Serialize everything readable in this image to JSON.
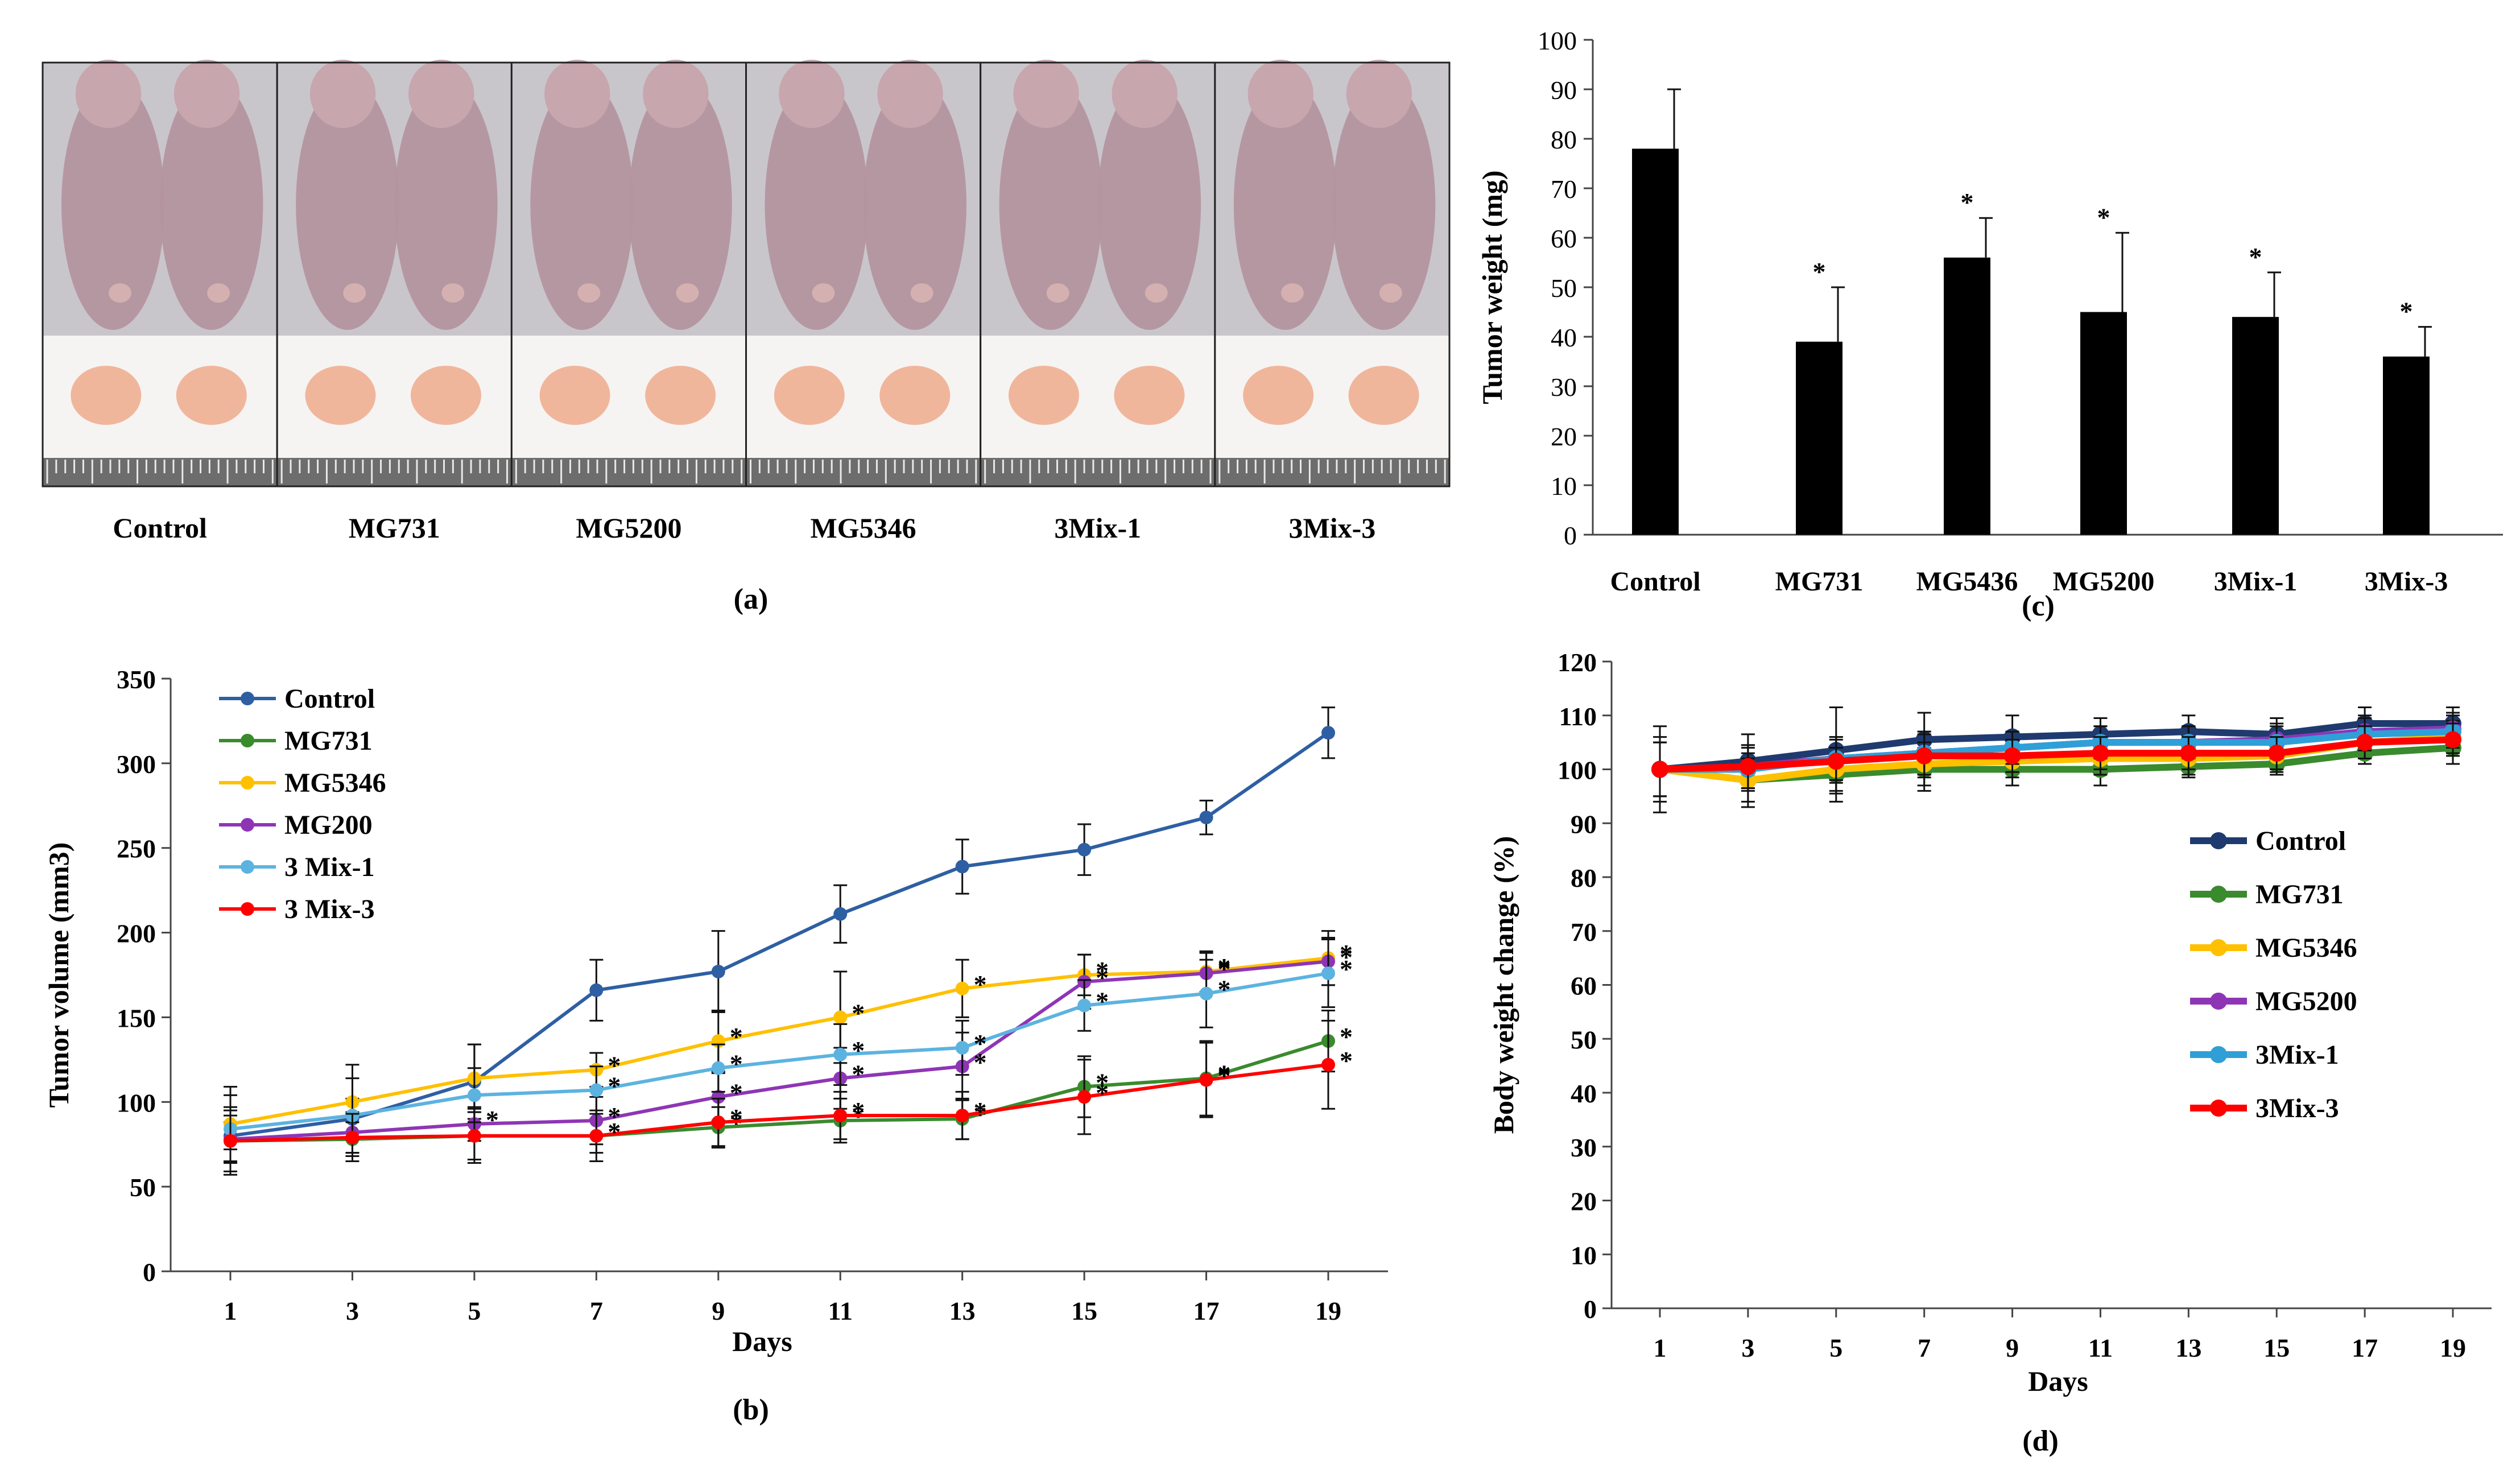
{
  "figure": {
    "panel_labels": {
      "a": "(a)",
      "b": "(b)",
      "c": "(c)",
      "d": "(d)"
    }
  },
  "photo_panel": {
    "groups": [
      "Control",
      "MG731",
      "MG5200",
      "MG5346",
      "3Mix-1",
      "3Mix-3"
    ],
    "colors": {
      "skin": "#b4959f",
      "foil": "#c9c6cb",
      "tumor": "#f0b69c",
      "ruler": "#6d6d6d",
      "border": "#222222"
    }
  },
  "chart_data": [
    {
      "id": "b",
      "type": "line",
      "title": "",
      "xlabel": "Days",
      "ylabel": "Tumor volume (mm3)",
      "x": [
        1,
        3,
        5,
        7,
        9,
        11,
        13,
        15,
        17,
        19
      ],
      "ylim": [
        0,
        350
      ],
      "yticks": [
        0,
        50,
        100,
        150,
        200,
        250,
        300,
        350
      ],
      "legend_position": "top-left",
      "series": [
        {
          "name": "Control",
          "color": "#2e5fa3",
          "values": [
            80,
            90,
            112,
            166,
            177,
            211,
            239,
            249,
            268,
            318
          ],
          "errors": [
            8,
            12,
            22,
            18,
            24,
            17,
            16,
            15,
            10,
            15
          ],
          "stars": [
            false,
            false,
            false,
            false,
            false,
            false,
            false,
            false,
            false,
            false
          ]
        },
        {
          "name": "MG731",
          "color": "#3a8a2e",
          "values": [
            77,
            78,
            80,
            80,
            85,
            89,
            90,
            109,
            114,
            136
          ],
          "errors": [
            20,
            10,
            14,
            10,
            12,
            13,
            12,
            18,
            22,
            18
          ],
          "stars": [
            false,
            false,
            false,
            true,
            true,
            true,
            true,
            true,
            true,
            true
          ]
        },
        {
          "name": "MG5346",
          "color": "#ffc000",
          "values": [
            87,
            100,
            114,
            119,
            136,
            150,
            167,
            175,
            177,
            185
          ],
          "errors": [
            22,
            22,
            20,
            10,
            18,
            27,
            17,
            12,
            12,
            16
          ],
          "stars": [
            false,
            false,
            false,
            true,
            true,
            true,
            true,
            true,
            true,
            true
          ]
        },
        {
          "name": "MG200",
          "color": "#8e35b5",
          "values": [
            78,
            82,
            87,
            89,
            103,
            114,
            121,
            171,
            176,
            183
          ],
          "errors": [
            14,
            12,
            10,
            14,
            14,
            18,
            20,
            16,
            12,
            14
          ],
          "stars": [
            false,
            false,
            true,
            true,
            true,
            true,
            true,
            true,
            true,
            true
          ]
        },
        {
          "name": "3 Mix-1",
          "color": "#5cb3e0",
          "values": [
            84,
            92,
            104,
            107,
            120,
            128,
            132,
            157,
            164,
            176
          ],
          "errors": [
            20,
            22,
            16,
            14,
            14,
            18,
            16,
            15,
            20,
            20
          ],
          "stars": [
            false,
            false,
            false,
            true,
            true,
            true,
            true,
            true,
            true,
            true
          ]
        },
        {
          "name": "3 Mix-3",
          "color": "#ff0000",
          "values": [
            77,
            79,
            80,
            80,
            88,
            92,
            92,
            103,
            113,
            122
          ],
          "errors": [
            18,
            14,
            16,
            15,
            14,
            14,
            14,
            22,
            22,
            26
          ],
          "stars": [
            false,
            false,
            false,
            true,
            true,
            true,
            true,
            true,
            true,
            true
          ]
        }
      ]
    },
    {
      "id": "c",
      "type": "bar",
      "title": "",
      "xlabel": "",
      "ylabel": "Tumor weight (mg)",
      "categories": [
        "Control",
        "MG731",
        "MG5436",
        "MG5200",
        "3Mix-1",
        "3Mix-3"
      ],
      "values": [
        78,
        39,
        56,
        45,
        44,
        36
      ],
      "errors": [
        12,
        11,
        8,
        16,
        9,
        6
      ],
      "stars": [
        false,
        true,
        true,
        true,
        true,
        true
      ],
      "ylim": [
        0,
        100
      ],
      "yticks": [
        0,
        10,
        20,
        30,
        40,
        50,
        60,
        70,
        80,
        90,
        100
      ],
      "bar_color": "#000000"
    },
    {
      "id": "d",
      "type": "line",
      "title": "",
      "xlabel": "Days",
      "ylabel": "Body weight change (%)",
      "x": [
        1,
        3,
        5,
        7,
        9,
        11,
        13,
        15,
        17,
        19
      ],
      "ylim": [
        0,
        120
      ],
      "yticks": [
        0,
        10,
        20,
        30,
        40,
        50,
        60,
        70,
        80,
        90,
        100,
        110,
        120
      ],
      "legend_position": "right",
      "series": [
        {
          "name": "Control",
          "color": "#1f3a6e",
          "values": [
            100,
            101.5,
            103.5,
            105.5,
            106,
            106.5,
            107,
            106.5,
            108.5,
            108.5
          ],
          "errors": [
            8,
            5,
            8,
            5,
            4,
            3,
            3,
            3,
            3,
            3
          ]
        },
        {
          "name": "MG731",
          "color": "#3a8a2e",
          "values": [
            100,
            98,
            99,
            100,
            100,
            100,
            100.5,
            101,
            103,
            104
          ],
          "errors": [
            6,
            4,
            5,
            4,
            3,
            3,
            2,
            2,
            2,
            3
          ]
        },
        {
          "name": "MG5346",
          "color": "#ffc000",
          "values": [
            100,
            98,
            100,
            101,
            101.5,
            102,
            102,
            102.5,
            105,
            106
          ],
          "errors": [
            5,
            5,
            4,
            4,
            3,
            3,
            3,
            3,
            3,
            3
          ]
        },
        {
          "name": "MG5200",
          "color": "#8e35b5",
          "values": [
            100,
            100.5,
            102,
            103,
            104,
            105,
            105,
            105.5,
            107,
            107.5
          ],
          "errors": [
            5,
            4,
            4,
            4,
            3,
            3,
            3,
            3,
            3,
            3
          ]
        },
        {
          "name": "3Mix-1",
          "color": "#2f9fd8",
          "values": [
            100,
            100,
            102,
            103,
            104,
            105,
            105,
            105,
            106.5,
            107
          ],
          "errors": [
            5,
            4,
            4,
            4,
            3,
            3,
            3,
            3,
            3,
            3
          ]
        },
        {
          "name": "3Mix-3",
          "color": "#ff0000",
          "values": [
            100,
            100.5,
            101.5,
            102.5,
            102.5,
            103,
            103,
            103,
            105,
            105.5
          ],
          "errors": [
            5,
            4,
            4,
            4,
            3,
            3,
            3,
            3,
            3,
            3
          ]
        }
      ]
    }
  ]
}
